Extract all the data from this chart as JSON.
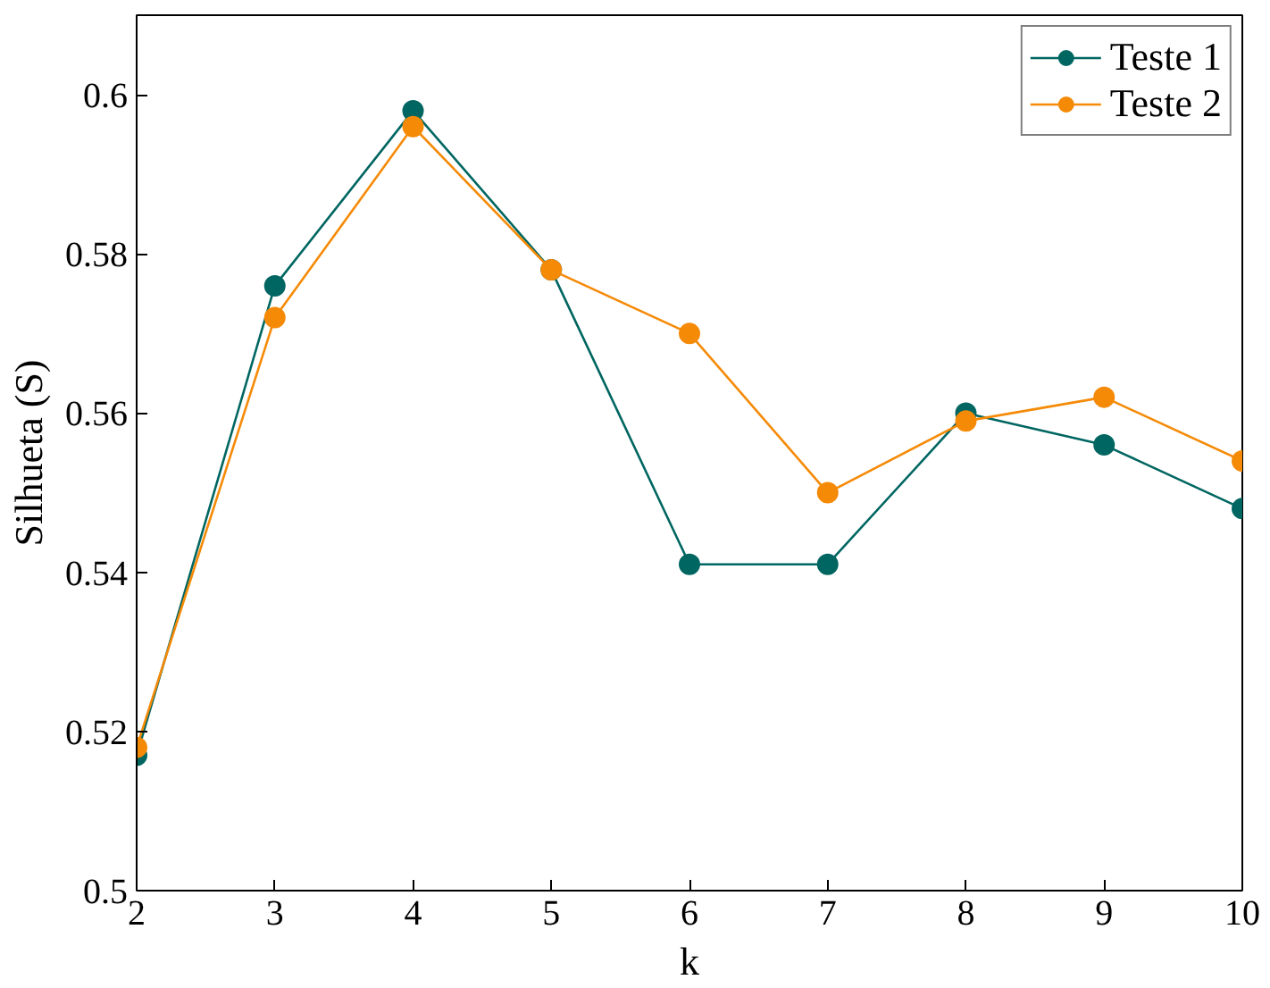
{
  "chart_data": {
    "type": "line",
    "xlabel": "k",
    "ylabel": "Silhueta (S)",
    "x": [
      2,
      3,
      4,
      5,
      6,
      7,
      8,
      9,
      10
    ],
    "series": [
      {
        "name": "Teste 1",
        "color": "#006661",
        "values": [
          0.517,
          0.576,
          0.598,
          0.578,
          0.541,
          0.541,
          0.56,
          0.556,
          0.548
        ]
      },
      {
        "name": "Teste 2",
        "color": "#f58a07",
        "values": [
          0.518,
          0.572,
          0.596,
          0.578,
          0.57,
          0.55,
          0.559,
          0.562,
          0.554
        ]
      }
    ],
    "xlim": [
      2,
      10
    ],
    "ylim": [
      0.5,
      0.61
    ],
    "xticks": [
      2,
      3,
      4,
      5,
      6,
      7,
      8,
      9,
      10
    ],
    "yticks": [
      0.5,
      0.52,
      0.54,
      0.56,
      0.58,
      0.6
    ],
    "grid": false,
    "legend": "top right",
    "marker": "circle",
    "line_style": "solid"
  }
}
